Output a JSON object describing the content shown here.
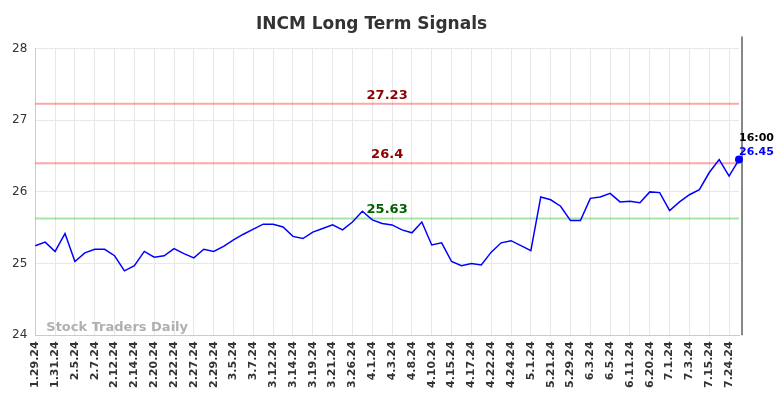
{
  "chart_data": {
    "type": "line",
    "title": "INCM Long Term Signals",
    "categories": [
      "1.29.24",
      null,
      "1.31.24",
      null,
      "2.5.24",
      null,
      "2.7.24",
      null,
      "2.12.24",
      null,
      "2.14.24",
      null,
      "2.20.24",
      null,
      "2.22.24",
      null,
      "2.27.24",
      null,
      "2.29.24",
      null,
      "3.5.24",
      null,
      "3.7.24",
      null,
      "3.12.24",
      null,
      "3.14.24",
      null,
      "3.19.24",
      null,
      "3.21.24",
      null,
      "3.26.24",
      null,
      "4.1.24",
      null,
      "4.3.24",
      null,
      "4.8.24",
      null,
      "4.10.24",
      null,
      "4.15.24",
      null,
      "4.17.24",
      null,
      "4.22.24",
      null,
      "4.24.24",
      null,
      "5.1.24",
      null,
      "5.21.24",
      null,
      "5.29.24",
      null,
      "6.3.24",
      null,
      "6.5.24",
      null,
      "6.11.24",
      null,
      "6.20.24",
      null,
      "7.1.24",
      null,
      "7.3.24",
      null,
      "7.15.24",
      null,
      "7.24.24",
      null
    ],
    "values": [
      25.25,
      25.3,
      25.17,
      25.42,
      25.03,
      25.15,
      25.2,
      25.2,
      25.11,
      24.9,
      24.97,
      25.17,
      25.09,
      25.11,
      25.21,
      25.14,
      25.08,
      25.2,
      25.17,
      25.24,
      25.33,
      25.41,
      25.48,
      25.55,
      25.55,
      25.51,
      25.38,
      25.35,
      25.44,
      25.49,
      25.54,
      25.47,
      25.58,
      25.73,
      25.61,
      25.56,
      25.54,
      25.47,
      25.43,
      25.58,
      25.26,
      25.29,
      25.03,
      24.97,
      25.0,
      24.98,
      25.16,
      25.29,
      25.32,
      25.25,
      25.18,
      25.93,
      25.89,
      25.8,
      25.6,
      25.6,
      25.91,
      25.93,
      25.98,
      25.86,
      25.87,
      25.85,
      26.0,
      25.99,
      25.74,
      25.86,
      25.96,
      26.03,
      26.27,
      26.45,
      26.22,
      26.45
    ],
    "color": "#0000ff",
    "ylim": [
      24,
      28
    ],
    "yticks": [
      24,
      25,
      26,
      27,
      28
    ],
    "grid": true,
    "reference_lines": [
      {
        "value": 27.23,
        "color": "#ff0000"
      },
      {
        "value": 26.4,
        "color": "#ff0000"
      },
      {
        "value": 25.63,
        "color": "#00b000"
      }
    ],
    "last_point": {
      "time": "16:00",
      "value": 26.45
    },
    "watermark": "Stock Traders Daily"
  }
}
